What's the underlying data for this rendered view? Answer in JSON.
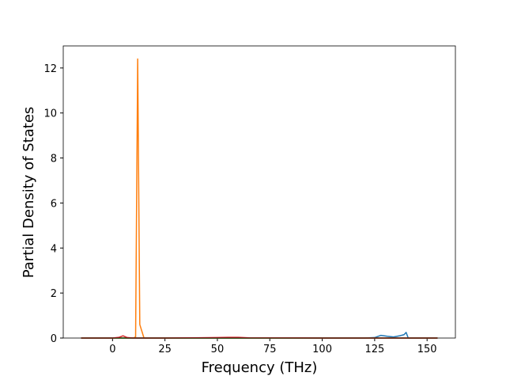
{
  "chart_data": {
    "type": "line",
    "x_label": "Frequency (THz)",
    "y_label": "Partial Density of States",
    "x": [
      -15,
      0,
      3,
      5,
      7,
      10,
      11,
      12,
      13,
      14,
      15,
      25,
      50,
      55,
      60,
      65,
      100,
      120,
      125,
      128,
      131,
      134,
      137,
      139,
      140,
      141,
      145,
      155
    ],
    "series": [
      {
        "color": "#1f77b4",
        "values": [
          0,
          0,
          0,
          0,
          0,
          0,
          0,
          0,
          0,
          0,
          0,
          0,
          0,
          0,
          0,
          0,
          0,
          0,
          0.02,
          0.12,
          0.08,
          0.05,
          0.1,
          0.15,
          0.25,
          0,
          0,
          0
        ]
      },
      {
        "color": "#ff7f0e",
        "values": [
          0,
          0,
          0,
          0,
          0,
          0,
          0.05,
          12.4,
          0.6,
          0.3,
          0,
          0,
          0,
          0,
          0,
          0,
          0,
          0,
          0,
          0,
          0,
          0,
          0,
          0,
          0,
          0,
          0,
          0
        ]
      },
      {
        "color": "#2ca02c",
        "values": [
          0,
          0,
          0,
          0,
          0,
          0,
          0,
          0,
          0,
          0,
          0,
          0,
          0,
          0,
          0,
          0,
          0,
          0,
          0,
          0,
          0,
          0,
          0,
          0,
          0,
          0,
          0,
          0
        ]
      },
      {
        "color": "#d62728",
        "values": [
          0,
          0,
          0.03,
          0.1,
          0.02,
          0,
          0,
          0,
          0,
          0,
          0,
          0,
          0.02,
          0.03,
          0.03,
          0.01,
          0,
          0,
          0,
          0,
          0,
          0,
          0,
          0,
          0,
          0,
          0,
          0
        ]
      }
    ],
    "xlim": [
      -23.5,
      163.5
    ],
    "ylim": [
      0,
      12.98
    ],
    "xticks": [
      0,
      25,
      50,
      75,
      100,
      125,
      150
    ],
    "yticks": [
      0,
      2,
      4,
      6,
      8,
      10,
      12
    ],
    "grid": false
  }
}
